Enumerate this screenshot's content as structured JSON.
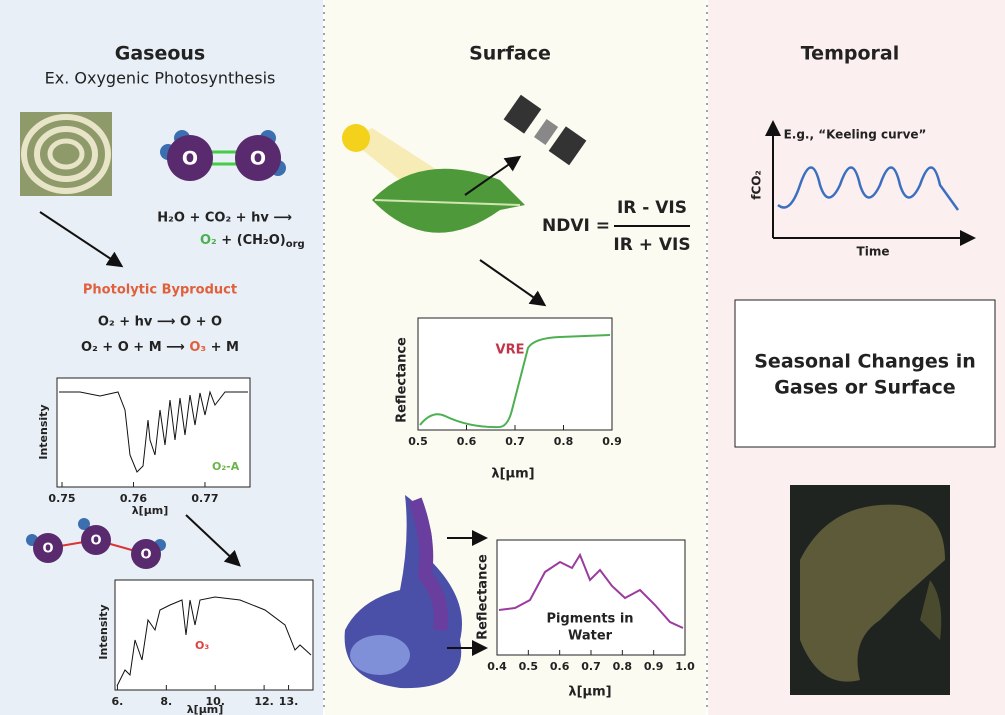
{
  "gaseous": {
    "title": "Gaseous",
    "subtitle": "Ex. Oxygenic Photosynthesis",
    "o2_atoms": [
      "O",
      "O"
    ],
    "equation": {
      "left": "H₂O + CO₂ + hv ⟶",
      "product": "O₂",
      "plus": "+ (CH₂O)",
      "subscript": "org"
    },
    "byproduct_title": "Photolytic Byproduct",
    "reaction_1": "O₂ + hv ⟶ O + O",
    "reaction_2": {
      "left": "O₂ + O + M ⟶",
      "product": "O₃",
      "right": "+ M"
    },
    "o2a_spectrum": {
      "y_label": "Intensity",
      "annotation": "O₂-A",
      "x_label": "λ[μm]",
      "xlim": [
        0.7493,
        0.7763
      ],
      "xticks": [
        0.75,
        0.76,
        0.77
      ]
    },
    "o3_atoms": [
      "O",
      "O",
      "O"
    ],
    "o3_spectrum": {
      "y_label": "Intensity",
      "annotation": "O₃",
      "x_label": "λ[μm]",
      "xlim": [
        5.9,
        14.0
      ],
      "xticks": [
        {
          "value": 6,
          "label": "6."
        },
        {
          "value": 8,
          "label": "8."
        },
        {
          "value": 10,
          "label": "10."
        },
        {
          "value": 12,
          "label": "12."
        },
        {
          "value": 13,
          "label": "13."
        }
      ]
    }
  },
  "surface": {
    "title": "Surface",
    "ndvi": {
      "lhs": "NDVI =",
      "numerator": "IR - VIS",
      "denominator": "IR + VIS"
    },
    "vegetation_spectrum": {
      "y_label": "Reflectance",
      "annotation": "VRE",
      "x_label": "λ[μm]",
      "xlim": [
        0.5,
        0.9
      ],
      "xticks": [
        0.5,
        0.6,
        0.7,
        0.8,
        0.9
      ]
    },
    "pigment_spectrum": {
      "y_label": "Reflectance",
      "annotation": [
        "Pigments in",
        "Water"
      ],
      "x_label": "λ[μm]",
      "xlim": [
        0.4,
        1.0
      ],
      "xticks": [
        0.4,
        0.5,
        0.6,
        0.7,
        0.8,
        0.9,
        {
          "value": 1,
          "label": "1.0"
        }
      ]
    }
  },
  "temporal": {
    "title": "Temporal",
    "keeling": {
      "caption": "E.g., “Keeling curve”",
      "y_label": "fCO₂",
      "x_label": "Time"
    },
    "box_text": [
      "Seasonal Changes in",
      "Gases or Surface"
    ]
  }
}
